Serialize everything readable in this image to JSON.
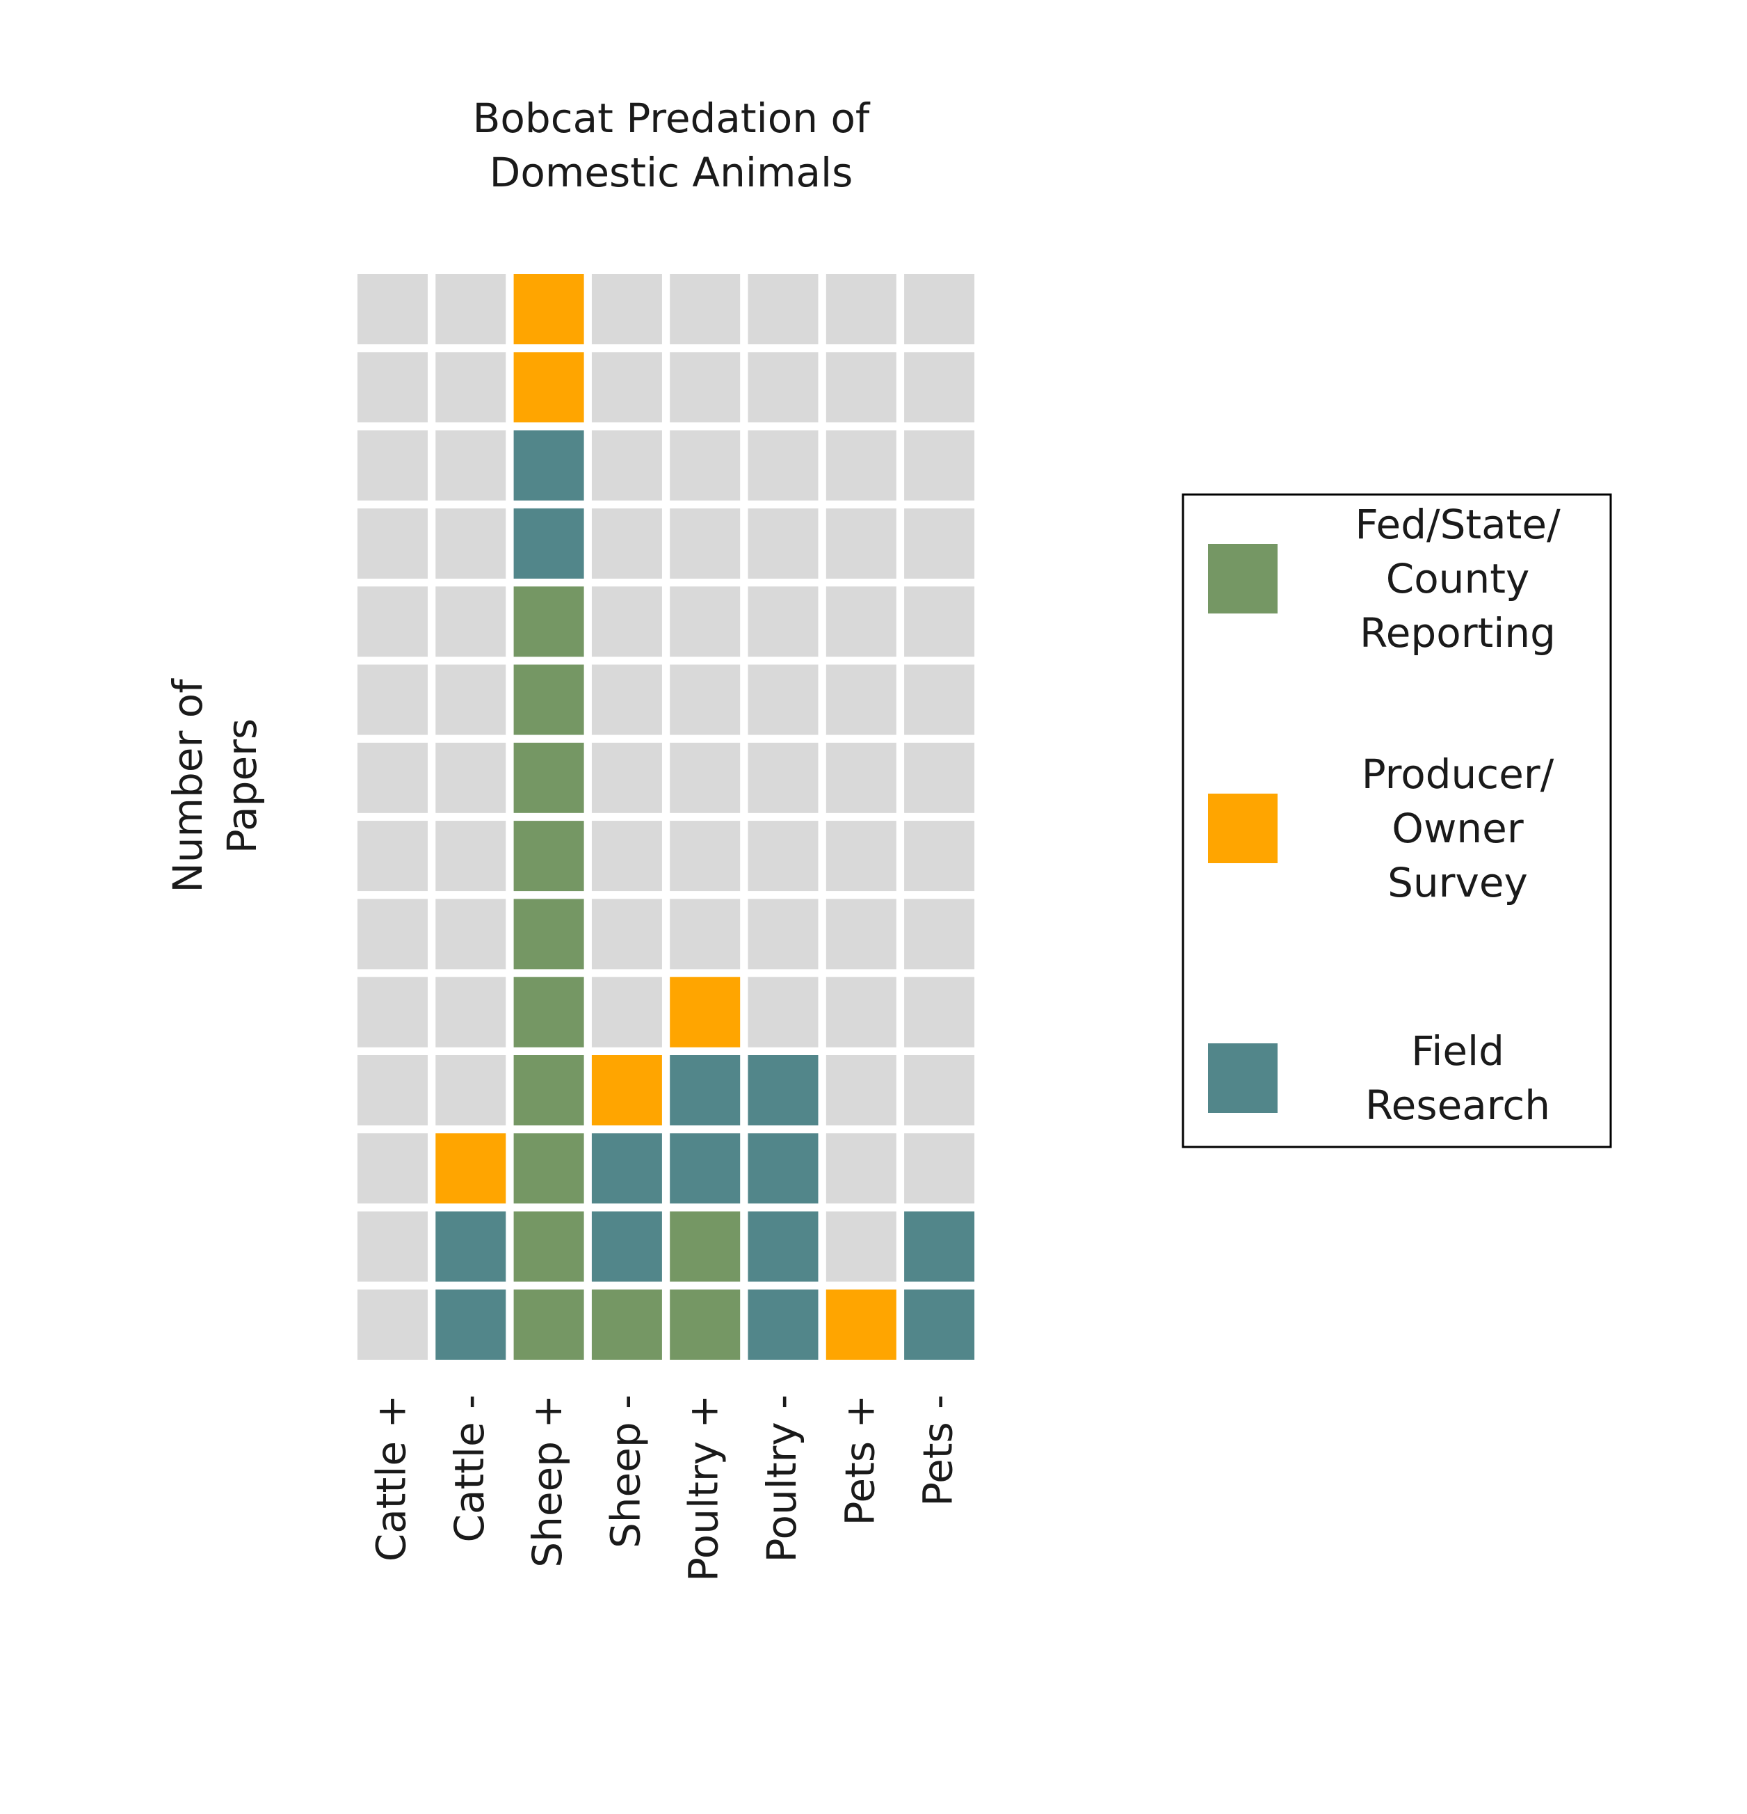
{
  "chart_data": {
    "type": "waffle",
    "title": "Bobcat Predation of Domestic Animals",
    "title_lines": [
      "Bobcat Predation of",
      "Domestic Animals"
    ],
    "ylabel": "Number of Papers",
    "ylabel_lines": [
      "Number of",
      "Papers"
    ],
    "xlabel": "",
    "categories": [
      "Cattle +",
      "Cattle -",
      "Sheep +",
      "Sheep -",
      "Poultry +",
      "Poultry -",
      "Pets +",
      "Pets -"
    ],
    "max_count": 14,
    "stack_order": [
      "Fed/State/County Reporting",
      "Field Research",
      "Producer/Owner Survey"
    ],
    "columns": [
      {
        "category": "Cattle +",
        "cells": []
      },
      {
        "category": "Cattle -",
        "cells": [
          "Field Research",
          "Field Research",
          "Producer/Owner Survey"
        ]
      },
      {
        "category": "Sheep +",
        "cells": [
          "Fed/State/County Reporting",
          "Fed/State/County Reporting",
          "Fed/State/County Reporting",
          "Fed/State/County Reporting",
          "Fed/State/County Reporting",
          "Fed/State/County Reporting",
          "Fed/State/County Reporting",
          "Fed/State/County Reporting",
          "Fed/State/County Reporting",
          "Fed/State/County Reporting",
          "Field Research",
          "Field Research",
          "Producer/Owner Survey",
          "Producer/Owner Survey"
        ]
      },
      {
        "category": "Sheep -",
        "cells": [
          "Fed/State/County Reporting",
          "Field Research",
          "Field Research",
          "Producer/Owner Survey"
        ]
      },
      {
        "category": "Poultry +",
        "cells": [
          "Fed/State/County Reporting",
          "Fed/State/County Reporting",
          "Field Research",
          "Field Research",
          "Producer/Owner Survey"
        ]
      },
      {
        "category": "Poultry -",
        "cells": [
          "Field Research",
          "Field Research",
          "Field Research",
          "Field Research"
        ]
      },
      {
        "category": "Pets +",
        "cells": [
          "Producer/Owner Survey"
        ]
      },
      {
        "category": "Pets -",
        "cells": [
          "Field Research",
          "Field Research"
        ]
      }
    ],
    "series": [
      {
        "name": "Fed/State/County Reporting",
        "label_lines": [
          "Fed/State/",
          "County",
          "Reporting"
        ],
        "color": "#759764",
        "values": [
          0,
          0,
          10,
          1,
          2,
          0,
          0,
          0
        ]
      },
      {
        "name": "Producer/Owner Survey",
        "label_lines": [
          "Producer/",
          "Owner",
          "Survey"
        ],
        "color": "#ffa500",
        "values": [
          0,
          1,
          2,
          1,
          1,
          0,
          1,
          0
        ]
      },
      {
        "name": "Field Research",
        "label_lines": [
          "Field",
          "Research"
        ],
        "color": "#52868a",
        "values": [
          0,
          2,
          2,
          2,
          2,
          4,
          0,
          2
        ]
      }
    ],
    "empty_color": "#d9d9d9",
    "legend_position": "right",
    "grid": false
  }
}
